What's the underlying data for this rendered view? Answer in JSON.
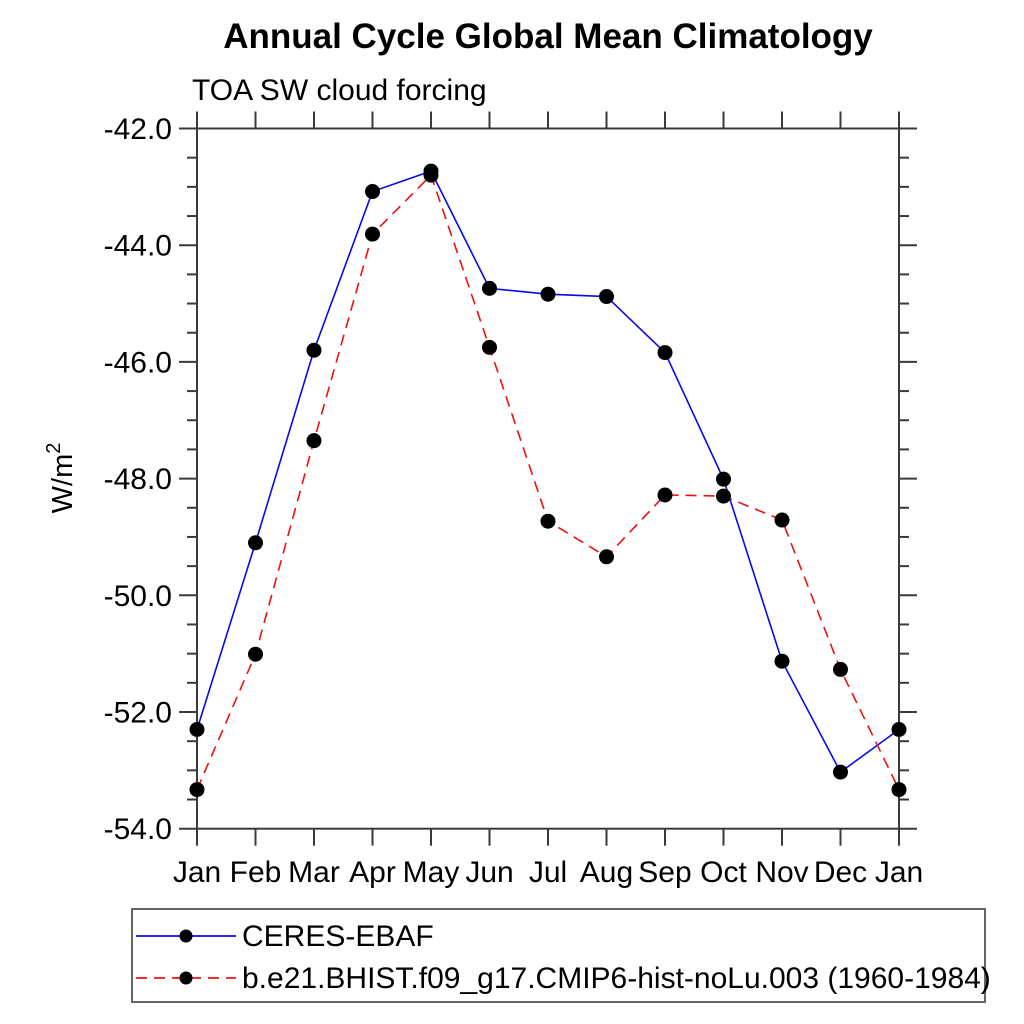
{
  "title": "Annual Cycle Global Mean Climatology",
  "subtitle": "TOA SW cloud forcing",
  "y_axis": {
    "unit_base": "W/m",
    "unit_exponent": "2",
    "tick_labels": [
      "-42.0",
      "-44.0",
      "-46.0",
      "-48.0",
      "-50.0",
      "-52.0",
      "-54.0"
    ]
  },
  "chart_data": {
    "type": "line",
    "title": "Annual Cycle Global Mean Climatology",
    "subtitle": "TOA SW cloud forcing",
    "ylabel": "W/m²",
    "categories": [
      "Jan",
      "Feb",
      "Mar",
      "Apr",
      "May",
      "Jun",
      "Jul",
      "Aug",
      "Sep",
      "Oct",
      "Nov",
      "Dec",
      "Jan"
    ],
    "ylim": [
      -54.0,
      -42.0
    ],
    "ytick_values": [
      -42.0,
      -44.0,
      -46.0,
      -48.0,
      -50.0,
      -52.0,
      -54.0
    ],
    "yminor_step": 0.5,
    "grid": false,
    "legend_position": "below-axis-boxed-left",
    "marker": "filled-circle",
    "marker_color": "#000000",
    "series": [
      {
        "name": "CERES-EBAF",
        "color": "#0808f0",
        "line_style": "solid",
        "values": [
          -52.3,
          -49.1,
          -45.8,
          -43.08,
          -42.73,
          -44.74,
          -44.84,
          -44.88,
          -45.84,
          -48.01,
          -51.13,
          -53.03,
          -52.3
        ]
      },
      {
        "name": "b.e21.BHIST.f09_g17.CMIP6-hist-noLu.003 (1960-1984)",
        "color": "#f01010",
        "line_style": "dashed",
        "values": [
          -53.33,
          -51.01,
          -47.35,
          -43.81,
          -42.8,
          -45.75,
          -48.73,
          -49.34,
          -48.28,
          -48.3,
          -48.71,
          -51.27,
          -53.33
        ]
      }
    ]
  }
}
